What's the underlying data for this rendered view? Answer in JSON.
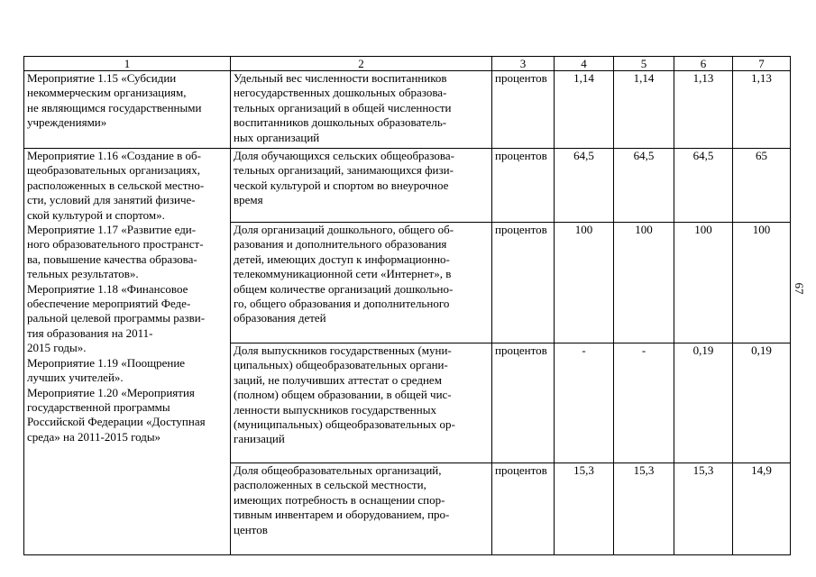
{
  "page_number": "67",
  "table": {
    "headers": [
      "1",
      "2",
      "3",
      "4",
      "5",
      "6",
      "7"
    ],
    "rows": [
      {
        "measure": "Мероприятие 1.15 «Субсидии\nнекоммерческим организациям,\nне являющимся государственными\nучреждениями»",
        "indicator": "Удельный вес численности воспитанников\nнегосударственных дошкольных образова-\nтельных организаций в общей численности\nвоспитанников дошкольных образователь-\nных организаций",
        "unit": "процентов",
        "v4": "1,14",
        "v5": "1,14",
        "v6": "1,13",
        "v7": "1,13"
      },
      {
        "measure": "Мероприятие 1.16 «Создание в об-\nщеобразовательных организациях,\nрасположенных в сельской местно-\nсти, условий для занятий физиче-\nской культурой и спортом».\nМероприятие 1.17 «Развитие еди-\nного образовательного пространст-\nва, повышение качества образова-\nтельных результатов».\nМероприятие 1.18 «Финансовое\nобеспечение мероприятий Феде-\nральной целевой программы разви-\nтия образования на 2011-\n2015 годы».\nМероприятие 1.19 «Поощрение\nлучших учителей».\nМероприятие 1.20 «Мероприятия\nгосударственной программы\nРоссийской Федерации «Доступная\nсреда» на 2011-2015 годы»",
        "indicator": "Доля обучающихся сельских общеобразова-\nтельных организаций, занимающихся физи-\nческой культурой и спортом во внеурочное\nвремя",
        "unit": "процентов",
        "v4": "64,5",
        "v5": "64,5",
        "v6": "64,5",
        "v7": "65"
      },
      {
        "indicator": "Доля организаций дошкольного, общего об-\nразования и дополнительного образования\nдетей,  имеющих доступ к информационно-\nтелекоммуникационной сети «Интернет», в\nобщем количестве организаций дошкольно-\nго, общего образования и дополнительного\nобразования детей",
        "unit": "процентов",
        "v4": "100",
        "v5": "100",
        "v6": "100",
        "v7": "100"
      },
      {
        "indicator": "Доля выпускников государственных (муни-\nципальных) общеобразовательных органи-\nзаций,  не получивших аттестат о среднем\n(полном) общем образовании, в общей чис-\nленности выпускников государственных\n(муниципальных) общеобразовательных ор-\nганизаций",
        "unit": "процентов",
        "v4": "-",
        "v5": "-",
        "v6": "0,19",
        "v7": "0,19"
      },
      {
        "indicator": "Доля общеобразовательных организаций,\nрасположенных в сельской местности,\nимеющих потребность в оснащении спор-\nтивным инвентарем и оборудованием, про-\nцентов",
        "unit": "процентов",
        "v4": "15,3",
        "v5": "15,3",
        "v6": "15,3",
        "v7": "14,9"
      }
    ]
  }
}
